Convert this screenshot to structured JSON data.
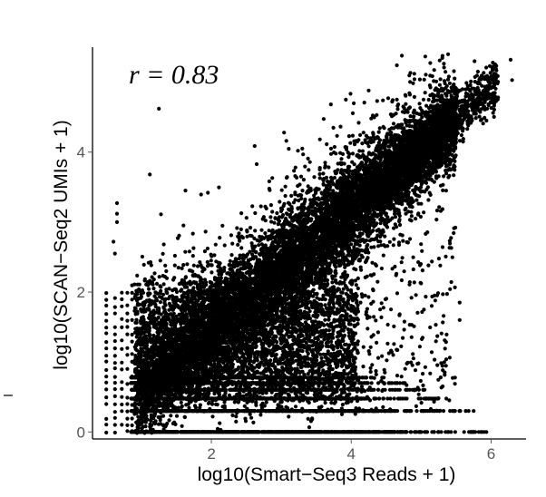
{
  "chart_data": {
    "type": "scatter",
    "title": "",
    "xlabel": "log10(Smart−Seq3 Reads + 1)",
    "ylabel": "log10(SCAN−Seq2 UMIs + 1)",
    "annotation": "r = 0.83",
    "xlim": [
      0.3,
      6.5
    ],
    "ylim": [
      -0.1,
      5.5
    ],
    "x_ticks": [
      2,
      4,
      6
    ],
    "y_ticks": [
      0,
      2,
      4
    ],
    "x_tick_labels": [
      "2",
      "4",
      "6"
    ],
    "y_tick_labels": [
      "0",
      "2",
      "4"
    ],
    "grid": false,
    "legend": "none",
    "point_color": "#000000",
    "correlation_r": 0.83,
    "trend": {
      "x": [
        0.6,
        6.2
      ],
      "y": [
        0.3,
        5.1
      ]
    },
    "outliers": [
      {
        "x": 1.25,
        "y": 4.62
      },
      {
        "x": 6.28,
        "y": 5.32
      },
      {
        "x": 6.3,
        "y": 5.03
      },
      {
        "x": 4.25,
        "y": 4.88
      },
      {
        "x": 5.75,
        "y": 0.3
      },
      {
        "x": 0.65,
        "y": 3.27
      },
      {
        "x": 0.65,
        "y": 3.12
      },
      {
        "x": 0.65,
        "y": 3.0
      },
      {
        "x": 0.6,
        "y": 2.72
      },
      {
        "x": 0.62,
        "y": 2.55
      },
      {
        "x": 1.12,
        "y": 3.68
      },
      {
        "x": 1.63,
        "y": 3.45
      },
      {
        "x": 1.95,
        "y": 3.42
      },
      {
        "x": 1.32,
        "y": 2.68
      },
      {
        "x": 1.52,
        "y": 2.77
      },
      {
        "x": 3.55,
        "y": 3.75
      },
      {
        "x": 3.3,
        "y": 4.05
      },
      {
        "x": 4.78,
        "y": 4.42
      },
      {
        "x": 5.6,
        "y": 4.15
      },
      {
        "x": 5.8,
        "y": 4.6
      },
      {
        "x": 5.55,
        "y": 1.85
      },
      {
        "x": 5.55,
        "y": 1.6
      },
      {
        "x": 5.28,
        "y": 0.78
      },
      {
        "x": 3.2,
        "y": 0.55
      },
      {
        "x": 4.05,
        "y": 1.25
      },
      {
        "x": 4.6,
        "y": 1.1
      }
    ]
  }
}
